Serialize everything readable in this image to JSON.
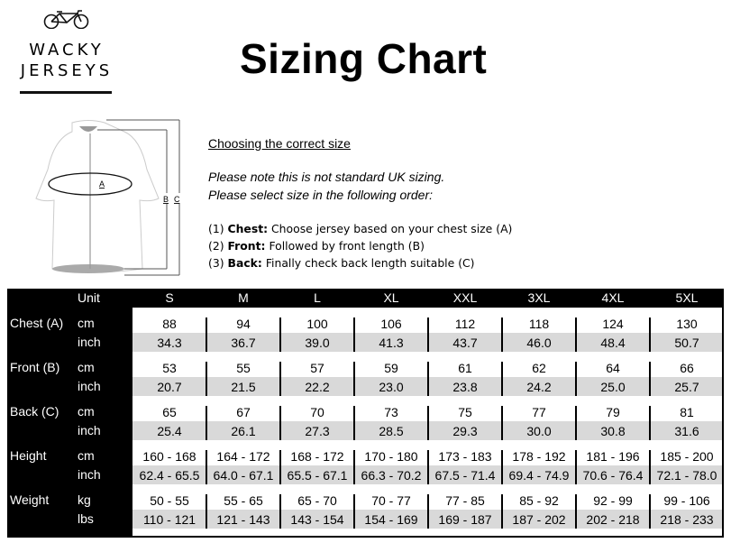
{
  "logo": {
    "line1": "WACKY",
    "line2": "JERSEYS",
    "icon": "bicycle-icon"
  },
  "title": "Sizing Chart",
  "diagram": {
    "labels": [
      "A",
      "B",
      "C"
    ]
  },
  "instructions": {
    "heading": "Choosing the correct size",
    "note1": "Please note this is not standard UK sizing.",
    "note2": "Please select size in the following order:",
    "steps": [
      {
        "num": "(1)",
        "bold": "Chest:",
        "text": " Choose jersey based on your chest size (A)"
      },
      {
        "num": "(2)",
        "bold": "Front:",
        "text": " Followed by front length (B)"
      },
      {
        "num": "(3)",
        "bold": "Back:",
        "text": " Finally check back length suitable (C)"
      }
    ]
  },
  "table": {
    "unit_header": "Unit",
    "sizes": [
      "S",
      "M",
      "L",
      "XL",
      "XXL",
      "3XL",
      "4XL",
      "5XL"
    ],
    "groups": [
      {
        "label": "Chest (A)",
        "rows": [
          {
            "unit": "cm",
            "values": [
              "88",
              "94",
              "100",
              "106",
              "112",
              "118",
              "124",
              "130"
            ]
          },
          {
            "unit": "inch",
            "values": [
              "34.3",
              "36.7",
              "39.0",
              "41.3",
              "43.7",
              "46.0",
              "48.4",
              "50.7"
            ]
          }
        ]
      },
      {
        "label": "Front (B)",
        "rows": [
          {
            "unit": "cm",
            "values": [
              "53",
              "55",
              "57",
              "59",
              "61",
              "62",
              "64",
              "66"
            ]
          },
          {
            "unit": "inch",
            "values": [
              "20.7",
              "21.5",
              "22.2",
              "23.0",
              "23.8",
              "24.2",
              "25.0",
              "25.7"
            ]
          }
        ]
      },
      {
        "label": "Back (C)",
        "rows": [
          {
            "unit": "cm",
            "values": [
              "65",
              "67",
              "70",
              "73",
              "75",
              "77",
              "79",
              "81"
            ]
          },
          {
            "unit": "inch",
            "values": [
              "25.4",
              "26.1",
              "27.3",
              "28.5",
              "29.3",
              "30.0",
              "30.8",
              "31.6"
            ]
          }
        ]
      },
      {
        "label": "Height",
        "rows": [
          {
            "unit": "cm",
            "values": [
              "160 - 168",
              "164 - 172",
              "168 - 172",
              "170 - 180",
              "173 - 183",
              "178 - 192",
              "181 - 196",
              "185 - 200"
            ]
          },
          {
            "unit": "inch",
            "values": [
              "62.4 - 65.5",
              "64.0 - 67.1",
              "65.5 - 67.1",
              "66.3 - 70.2",
              "67.5 - 71.4",
              "69.4 - 74.9",
              "70.6 - 76.4",
              "72.1 - 78.0"
            ]
          }
        ]
      },
      {
        "label": "Weight",
        "rows": [
          {
            "unit": "kg",
            "values": [
              "50 - 55",
              "55 - 65",
              "65 - 70",
              "70 - 77",
              "77 - 85",
              "85 - 92",
              "92 - 99",
              "99 - 106"
            ]
          },
          {
            "unit": "lbs",
            "values": [
              "110 - 121",
              "121 - 143",
              "143 - 154",
              "154 - 169",
              "169 - 187",
              "187 - 202",
              "202 - 218",
              "218 - 233"
            ]
          }
        ]
      }
    ]
  }
}
